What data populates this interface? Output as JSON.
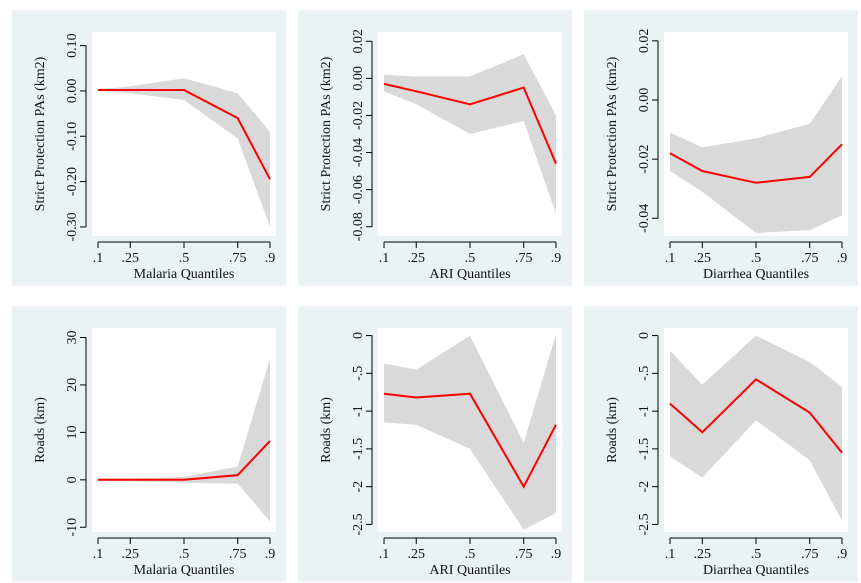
{
  "colors": {
    "panel_bg": "#eaf2f3",
    "plot_bg": "#ffffff",
    "ci_band": "#d9d9d9",
    "estimate_line": "#ff0000",
    "axis": "#000000"
  },
  "chart_data": [
    {
      "type": "area",
      "title": "",
      "xlabel": "Malaria Quantiles",
      "ylabel": "Strict Protection PAs (km2)",
      "x": [
        0.1,
        0.25,
        0.5,
        0.75,
        0.9
      ],
      "xticks": [
        ".1",
        ".25",
        ".5",
        ".75",
        ".9"
      ],
      "yticks": [
        -0.3,
        -0.2,
        -0.1,
        0,
        0.1
      ],
      "ytick_labels": [
        "-0.30",
        "-0.20",
        "-0.10",
        "0.00",
        "0.10"
      ],
      "ylim": [
        -0.32,
        0.13
      ],
      "series": [
        {
          "kind": "line",
          "values": [
            0.002,
            0.002,
            0.002,
            -0.06,
            -0.195
          ]
        },
        {
          "kind": "band",
          "lower": [
            0.0,
            -0.005,
            -0.02,
            -0.105,
            -0.3
          ],
          "upper": [
            0.004,
            0.01,
            0.028,
            -0.005,
            -0.09
          ]
        }
      ]
    },
    {
      "type": "area",
      "title": "",
      "xlabel": "ARI Quantiles",
      "ylabel": "Strict Protection PAs (km2)",
      "x": [
        0.1,
        0.25,
        0.5,
        0.75,
        0.9
      ],
      "xticks": [
        ".1",
        ".25",
        ".5",
        ".75",
        ".9"
      ],
      "yticks": [
        -0.08,
        -0.06,
        -0.04,
        -0.02,
        0,
        0.02
      ],
      "ytick_labels": [
        "-0.08",
        "-0.06",
        "-0.04",
        "-0.02",
        "0.00",
        "0.02"
      ],
      "ylim": [
        -0.085,
        0.025
      ],
      "series": [
        {
          "kind": "line",
          "values": [
            -0.003,
            -0.007,
            -0.014,
            -0.005,
            -0.046
          ]
        },
        {
          "kind": "band",
          "lower": [
            -0.007,
            -0.014,
            -0.03,
            -0.023,
            -0.073
          ],
          "upper": [
            0.002,
            0.001,
            0.001,
            0.013,
            -0.02
          ]
        }
      ]
    },
    {
      "type": "area",
      "title": "",
      "xlabel": "Diarrhea Quantiles",
      "ylabel": "Strict Protection PAs (km2)",
      "x": [
        0.1,
        0.25,
        0.5,
        0.75,
        0.9
      ],
      "xticks": [
        ".1",
        ".25",
        ".5",
        ".75",
        ".9"
      ],
      "yticks": [
        -0.04,
        -0.02,
        0,
        0.02
      ],
      "ytick_labels": [
        "-0.04",
        "-0.02",
        "0.00",
        "0.02"
      ],
      "ylim": [
        -0.046,
        0.023
      ],
      "series": [
        {
          "kind": "line",
          "values": [
            -0.018,
            -0.024,
            -0.028,
            -0.026,
            -0.015
          ]
        },
        {
          "kind": "band",
          "lower": [
            -0.024,
            -0.031,
            -0.045,
            -0.044,
            -0.039
          ],
          "upper": [
            -0.011,
            -0.016,
            -0.013,
            -0.008,
            0.008
          ]
        }
      ]
    },
    {
      "type": "area",
      "title": "",
      "xlabel": "Malaria Quantiles",
      "ylabel": "Roads (km)",
      "x": [
        0.1,
        0.25,
        0.5,
        0.75,
        0.9
      ],
      "xticks": [
        ".1",
        ".25",
        ".5",
        ".75",
        ".9"
      ],
      "yticks": [
        -10,
        0,
        10,
        20,
        30
      ],
      "ytick_labels": [
        "-10",
        "0",
        "10",
        "20",
        "30"
      ],
      "ylim": [
        -11,
        32
      ],
      "series": [
        {
          "kind": "line",
          "values": [
            0,
            0,
            0,
            1,
            8.2
          ]
        },
        {
          "kind": "band",
          "lower": [
            -0.3,
            -0.3,
            -0.6,
            -0.8,
            -8.8
          ],
          "upper": [
            0.3,
            0.3,
            0.6,
            2.8,
            25.5
          ]
        }
      ]
    },
    {
      "type": "area",
      "title": "",
      "xlabel": "ARI Quantiles",
      "ylabel": "Roads (km)",
      "x": [
        0.1,
        0.25,
        0.5,
        0.75,
        0.9
      ],
      "xticks": [
        ".1",
        ".25",
        ".5",
        ".75",
        ".9"
      ],
      "yticks": [
        -2.5,
        -2,
        -1.5,
        -1,
        -0.5,
        0
      ],
      "ytick_labels": [
        "-2.5",
        "-2",
        "-1.5",
        "-1",
        "-.5",
        "0"
      ],
      "ylim": [
        -2.6,
        0.1
      ],
      "series": [
        {
          "kind": "line",
          "values": [
            -0.77,
            -0.82,
            -0.77,
            -2.0,
            -1.18
          ]
        },
        {
          "kind": "band",
          "lower": [
            -1.15,
            -1.18,
            -1.5,
            -2.57,
            -2.35
          ],
          "upper": [
            -0.37,
            -0.45,
            0.0,
            -1.42,
            0.02
          ]
        }
      ]
    },
    {
      "type": "area",
      "title": "",
      "xlabel": "Diarrhea Quantiles",
      "ylabel": "Roads (km)",
      "x": [
        0.1,
        0.25,
        0.5,
        0.75,
        0.9
      ],
      "xticks": [
        ".1",
        ".25",
        ".5",
        ".75",
        ".9"
      ],
      "yticks": [
        -2.5,
        -2,
        -1.5,
        -1,
        -0.5,
        0
      ],
      "ytick_labels": [
        "-2.5",
        "-2",
        "-1.5",
        "-1",
        "-.5",
        "0"
      ],
      "ylim": [
        -2.6,
        0.1
      ],
      "series": [
        {
          "kind": "line",
          "values": [
            -0.9,
            -1.28,
            -0.58,
            -1.02,
            -1.55
          ]
        },
        {
          "kind": "band",
          "lower": [
            -1.6,
            -1.88,
            -1.12,
            -1.65,
            -2.45
          ],
          "upper": [
            -0.2,
            -0.65,
            0.0,
            -0.35,
            -0.68
          ]
        }
      ]
    }
  ]
}
